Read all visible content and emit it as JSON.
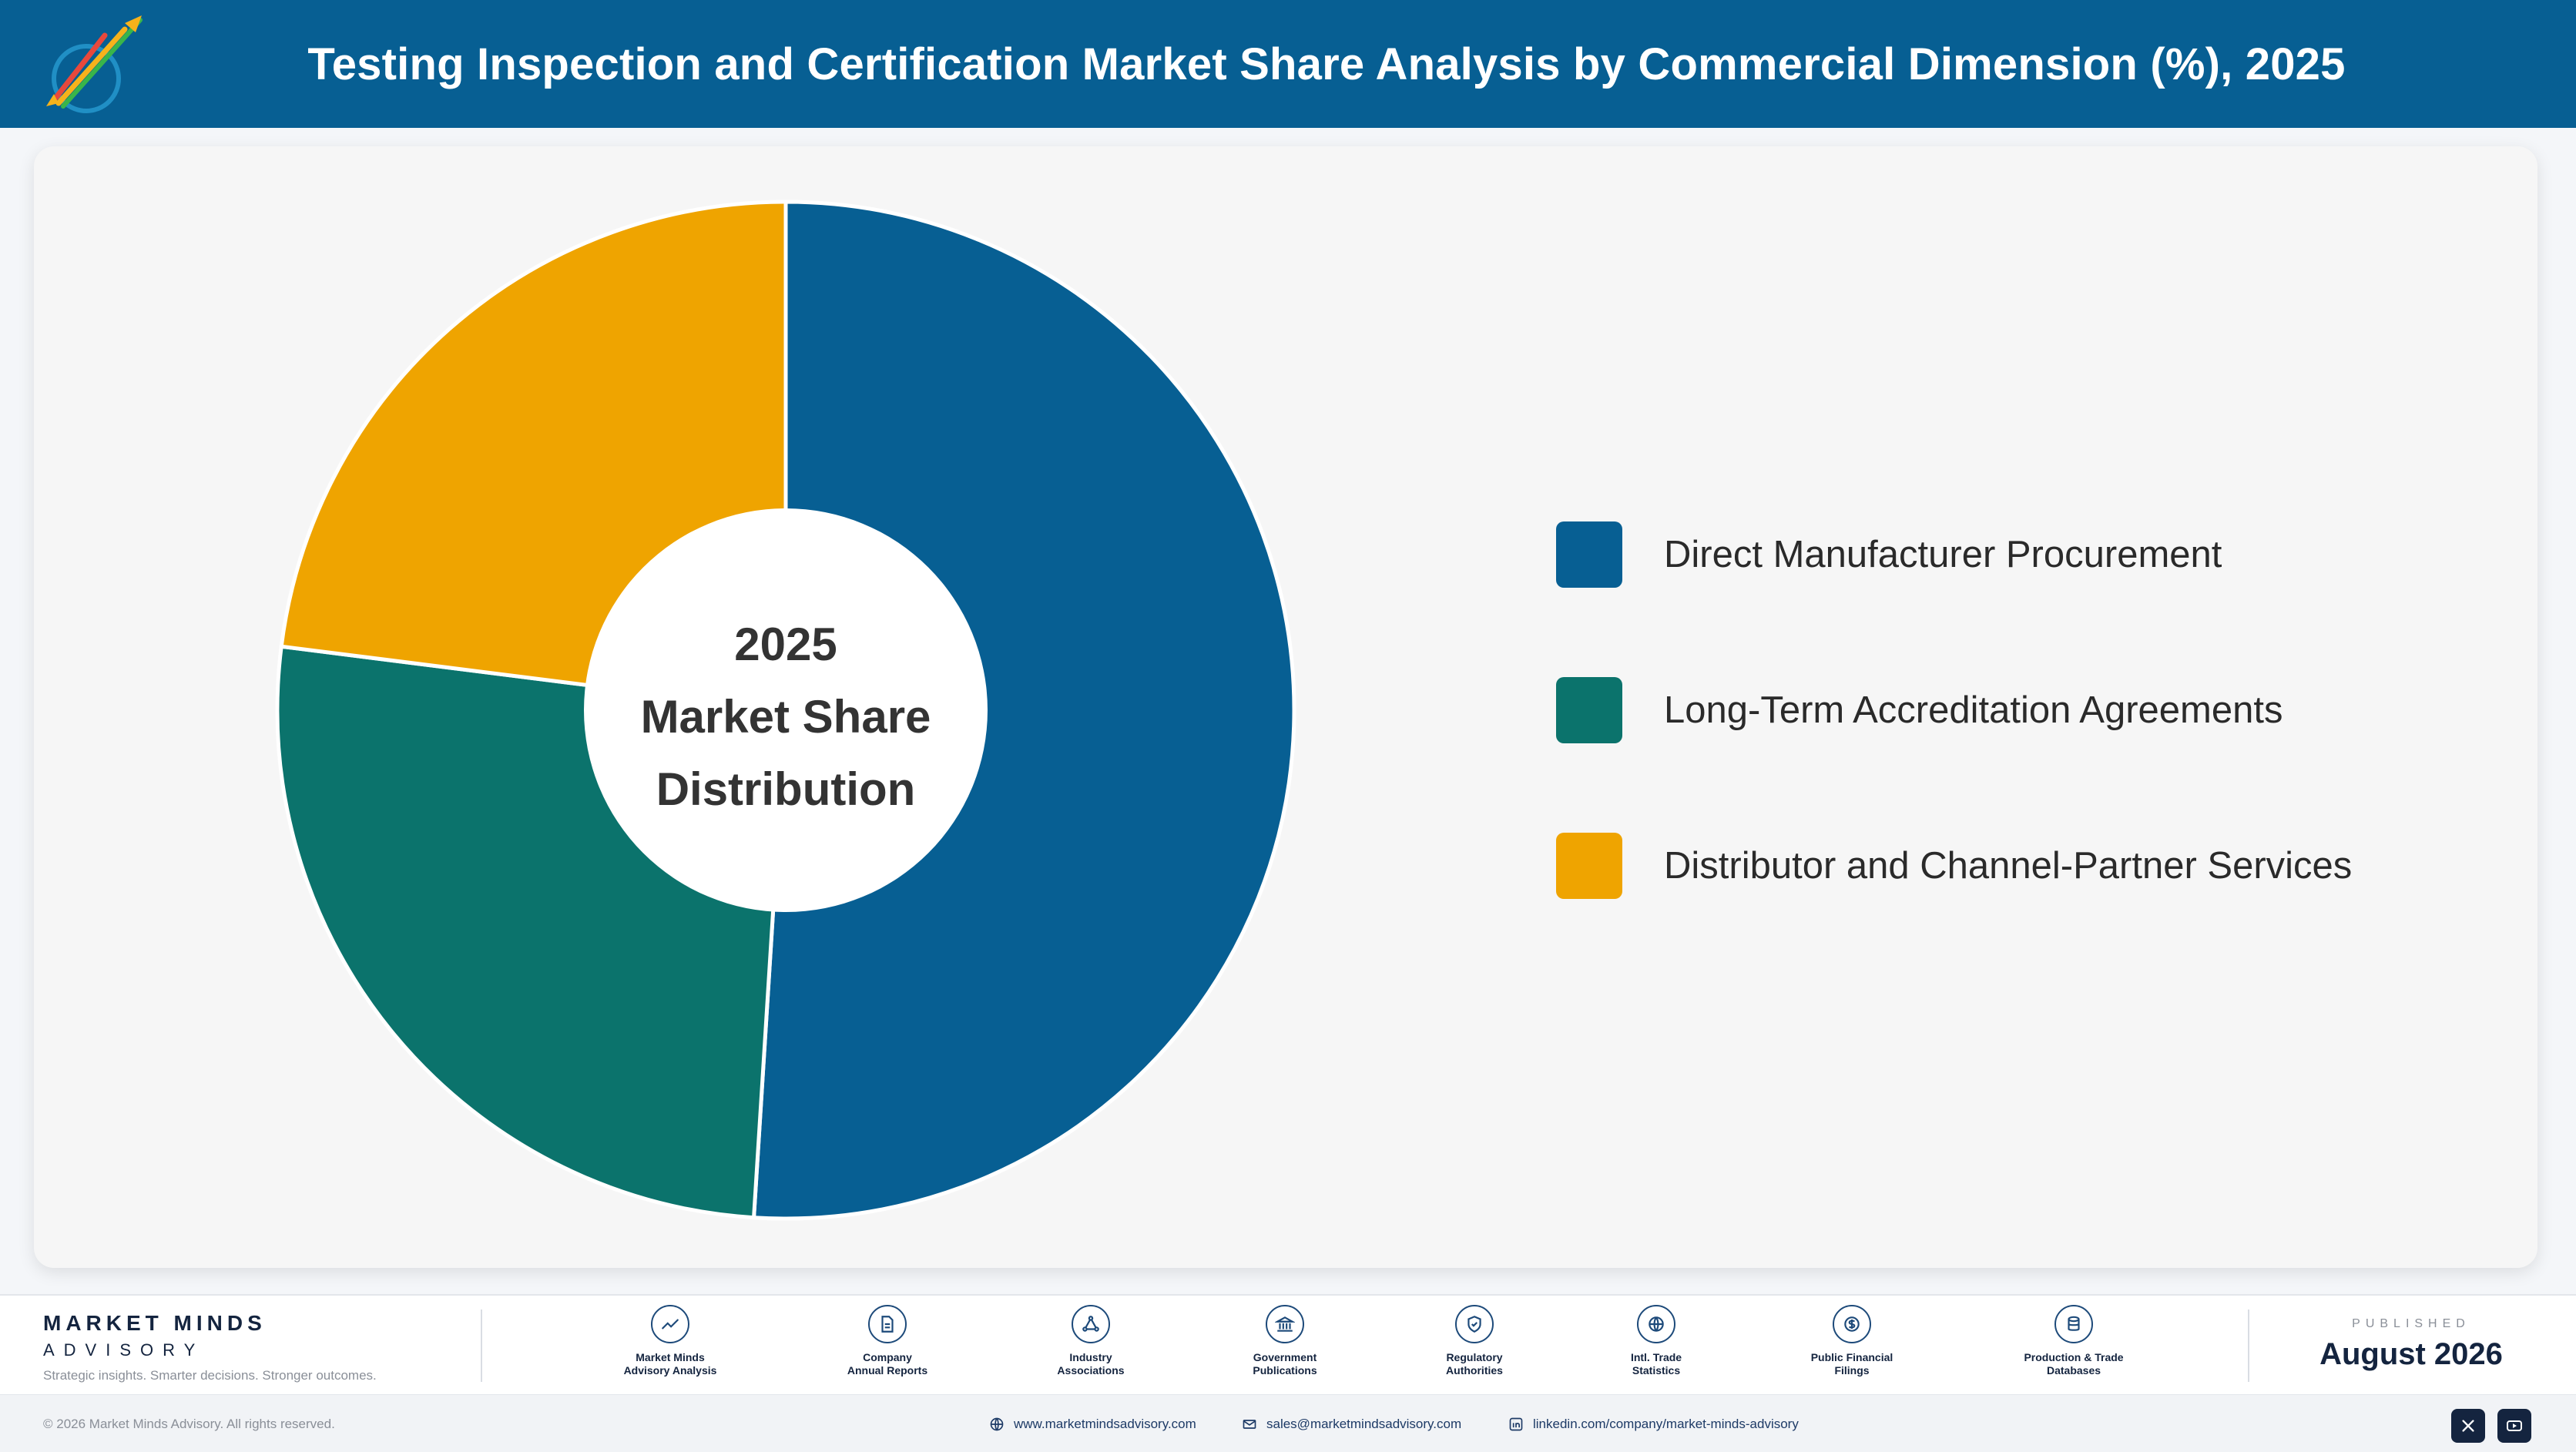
{
  "header": {
    "title": "Testing Inspection and Certification Market Share Analysis by Commercial Dimension (%), 2025"
  },
  "colors": {
    "header_bg": "#075f93",
    "series": [
      "#075f93",
      "#0b736c",
      "#efa400"
    ]
  },
  "chart_data": {
    "type": "pie",
    "donut": true,
    "center_label": [
      "2025",
      "Market Share",
      "Distribution"
    ],
    "legend_position": "right",
    "categories": [
      "Direct Manufacturer Procurement",
      "Long-Term Accreditation Agreements",
      "Distributor and Channel-Partner Services"
    ],
    "values": [
      51,
      26,
      23
    ],
    "colors": [
      "#075f93",
      "#0b736c",
      "#efa400"
    ]
  },
  "footer": {
    "brand_name": "MARKET MINDS",
    "brand_sub": "ADVISORY",
    "tagline": "Strategic insights. Smarter decisions. Stronger outcomes.",
    "sources": [
      {
        "label": "Market Minds\nAdvisory Analysis",
        "icon": "chart-line-icon"
      },
      {
        "label": "Company\nAnnual Reports",
        "icon": "document-icon"
      },
      {
        "label": "Industry\nAssociations",
        "icon": "network-icon"
      },
      {
        "label": "Government\nPublications",
        "icon": "bank-icon"
      },
      {
        "label": "Regulatory\nAuthorities",
        "icon": "shield-check-icon"
      },
      {
        "label": "Intl. Trade\nStatistics",
        "icon": "globe-icon"
      },
      {
        "label": "Public Financial\nFilings",
        "icon": "dollar-icon"
      },
      {
        "label": "Production & Trade\nDatabases",
        "icon": "database-icon"
      }
    ],
    "published_label": "PUBLISHED",
    "published_date": "August 2026",
    "copyright": "© 2026 Market Minds Advisory. All rights reserved.",
    "website": "www.marketmindsadvisory.com",
    "email": "sales@marketmindsadvisory.com",
    "linkedin": "linkedin.com/company/market-minds-advisory",
    "social": [
      "x-icon",
      "youtube-icon"
    ]
  }
}
